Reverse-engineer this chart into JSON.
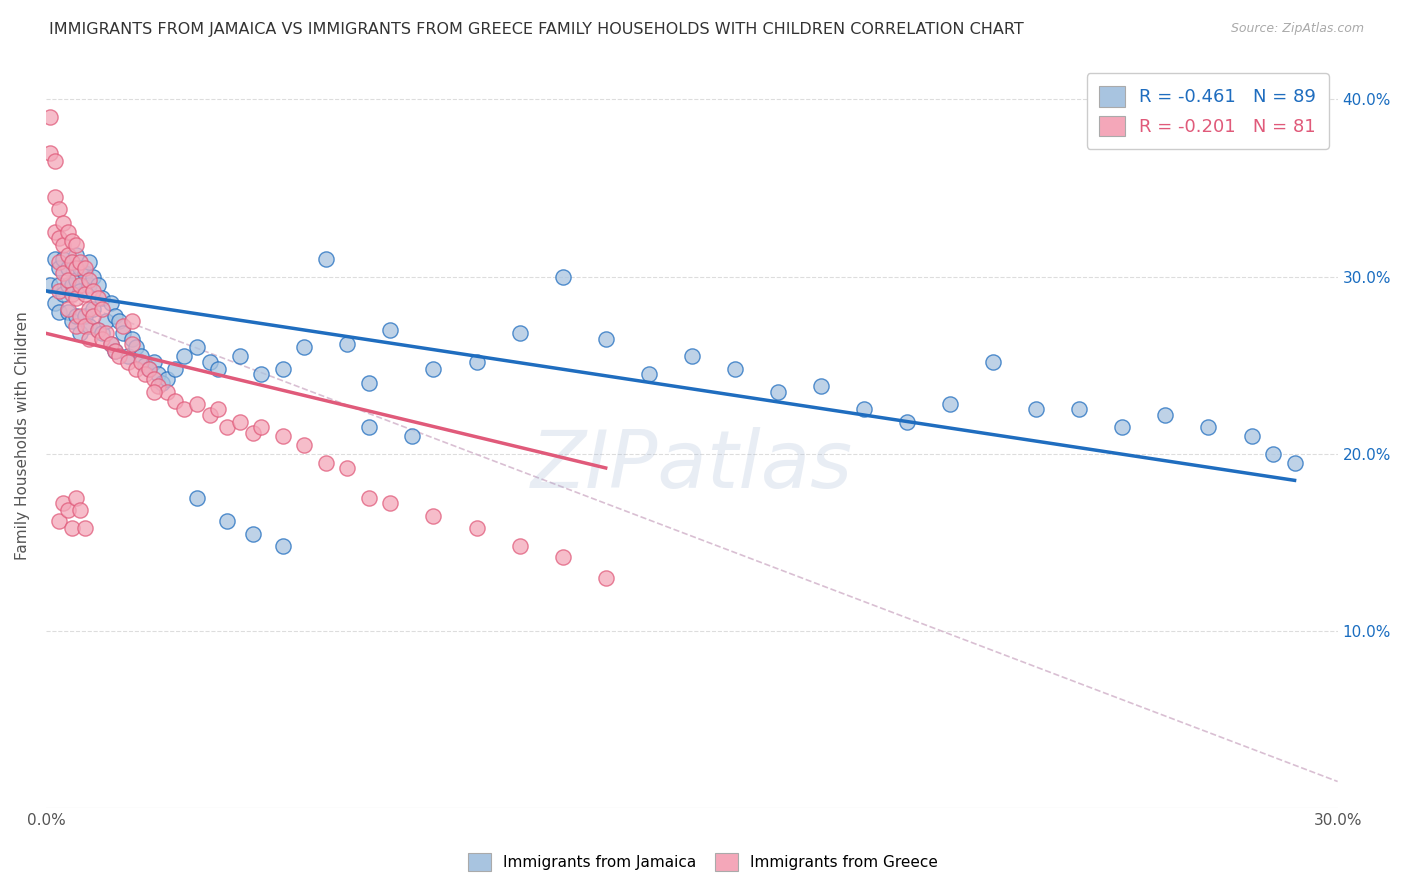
{
  "title": "IMMIGRANTS FROM JAMAICA VS IMMIGRANTS FROM GREECE FAMILY HOUSEHOLDS WITH CHILDREN CORRELATION CHART",
  "source": "Source: ZipAtlas.com",
  "ylabel": "Family Households with Children",
  "x_min": 0.0,
  "x_max": 0.3,
  "y_min": 0.0,
  "y_max": 0.42,
  "x_ticks": [
    0.0,
    0.05,
    0.1,
    0.15,
    0.2,
    0.25,
    0.3
  ],
  "y_ticks_right": [
    0.1,
    0.2,
    0.3,
    0.4
  ],
  "y_tick_labels_right": [
    "10.0%",
    "20.0%",
    "30.0%",
    "40.0%"
  ],
  "jamaica_color": "#a8c4e0",
  "greece_color": "#f4a7b9",
  "jamaica_line_color": "#1f6dbf",
  "greece_line_color": "#e05a7a",
  "dashed_line_color": "#d0b0c8",
  "jamaica_R": -0.461,
  "jamaica_N": 89,
  "greece_R": -0.201,
  "greece_N": 81,
  "jamaica_scatter_x": [
    0.001,
    0.002,
    0.002,
    0.003,
    0.003,
    0.003,
    0.004,
    0.004,
    0.005,
    0.005,
    0.005,
    0.006,
    0.006,
    0.006,
    0.007,
    0.007,
    0.007,
    0.008,
    0.008,
    0.008,
    0.009,
    0.009,
    0.01,
    0.01,
    0.01,
    0.011,
    0.011,
    0.012,
    0.012,
    0.013,
    0.013,
    0.014,
    0.015,
    0.015,
    0.016,
    0.016,
    0.017,
    0.018,
    0.019,
    0.02,
    0.021,
    0.022,
    0.023,
    0.024,
    0.025,
    0.026,
    0.027,
    0.028,
    0.03,
    0.032,
    0.035,
    0.038,
    0.04,
    0.045,
    0.05,
    0.055,
    0.06,
    0.065,
    0.07,
    0.075,
    0.08,
    0.09,
    0.1,
    0.11,
    0.12,
    0.13,
    0.14,
    0.15,
    0.16,
    0.17,
    0.18,
    0.19,
    0.2,
    0.21,
    0.22,
    0.23,
    0.24,
    0.25,
    0.26,
    0.27,
    0.28,
    0.285,
    0.29,
    0.035,
    0.042,
    0.048,
    0.055,
    0.075,
    0.085
  ],
  "jamaica_scatter_y": [
    0.295,
    0.31,
    0.285,
    0.305,
    0.295,
    0.28,
    0.31,
    0.29,
    0.305,
    0.295,
    0.28,
    0.308,
    0.295,
    0.275,
    0.312,
    0.298,
    0.278,
    0.305,
    0.292,
    0.268,
    0.302,
    0.278,
    0.308,
    0.295,
    0.272,
    0.3,
    0.282,
    0.295,
    0.27,
    0.288,
    0.268,
    0.275,
    0.285,
    0.262,
    0.278,
    0.258,
    0.275,
    0.268,
    0.255,
    0.265,
    0.26,
    0.255,
    0.25,
    0.248,
    0.252,
    0.245,
    0.24,
    0.242,
    0.248,
    0.255,
    0.26,
    0.252,
    0.248,
    0.255,
    0.245,
    0.248,
    0.26,
    0.31,
    0.262,
    0.24,
    0.27,
    0.248,
    0.252,
    0.268,
    0.3,
    0.265,
    0.245,
    0.255,
    0.248,
    0.235,
    0.238,
    0.225,
    0.218,
    0.228,
    0.252,
    0.225,
    0.225,
    0.215,
    0.222,
    0.215,
    0.21,
    0.2,
    0.195,
    0.175,
    0.162,
    0.155,
    0.148,
    0.215,
    0.21
  ],
  "greece_scatter_x": [
    0.001,
    0.001,
    0.002,
    0.002,
    0.002,
    0.003,
    0.003,
    0.003,
    0.003,
    0.004,
    0.004,
    0.004,
    0.005,
    0.005,
    0.005,
    0.005,
    0.006,
    0.006,
    0.006,
    0.007,
    0.007,
    0.007,
    0.007,
    0.008,
    0.008,
    0.008,
    0.009,
    0.009,
    0.009,
    0.01,
    0.01,
    0.01,
    0.011,
    0.011,
    0.012,
    0.012,
    0.013,
    0.013,
    0.014,
    0.015,
    0.016,
    0.017,
    0.018,
    0.019,
    0.02,
    0.021,
    0.022,
    0.023,
    0.024,
    0.025,
    0.026,
    0.028,
    0.03,
    0.032,
    0.035,
    0.038,
    0.04,
    0.042,
    0.045,
    0.048,
    0.05,
    0.055,
    0.06,
    0.065,
    0.07,
    0.075,
    0.08,
    0.09,
    0.1,
    0.11,
    0.12,
    0.13,
    0.003,
    0.004,
    0.005,
    0.006,
    0.007,
    0.008,
    0.009,
    0.02,
    0.025
  ],
  "greece_scatter_y": [
    0.39,
    0.37,
    0.365,
    0.345,
    0.325,
    0.338,
    0.322,
    0.308,
    0.292,
    0.33,
    0.318,
    0.302,
    0.325,
    0.312,
    0.298,
    0.282,
    0.32,
    0.308,
    0.29,
    0.318,
    0.305,
    0.288,
    0.272,
    0.308,
    0.295,
    0.278,
    0.305,
    0.29,
    0.272,
    0.298,
    0.282,
    0.265,
    0.292,
    0.278,
    0.288,
    0.27,
    0.282,
    0.265,
    0.268,
    0.262,
    0.258,
    0.255,
    0.272,
    0.252,
    0.262,
    0.248,
    0.252,
    0.245,
    0.248,
    0.242,
    0.238,
    0.235,
    0.23,
    0.225,
    0.228,
    0.222,
    0.225,
    0.215,
    0.218,
    0.212,
    0.215,
    0.21,
    0.205,
    0.195,
    0.192,
    0.175,
    0.172,
    0.165,
    0.158,
    0.148,
    0.142,
    0.13,
    0.162,
    0.172,
    0.168,
    0.158,
    0.175,
    0.168,
    0.158,
    0.275,
    0.235
  ],
  "jamaica_trend_x": [
    0.0,
    0.29
  ],
  "jamaica_trend_y": [
    0.292,
    0.185
  ],
  "greece_trend_x": [
    0.0,
    0.13
  ],
  "greece_trend_y": [
    0.268,
    0.192
  ],
  "dashed_trend_x": [
    0.0,
    0.3
  ],
  "dashed_trend_y": [
    0.292,
    0.015
  ],
  "watermark": "ZIPatlas",
  "background_color": "#ffffff",
  "grid_color": "#dddddd"
}
